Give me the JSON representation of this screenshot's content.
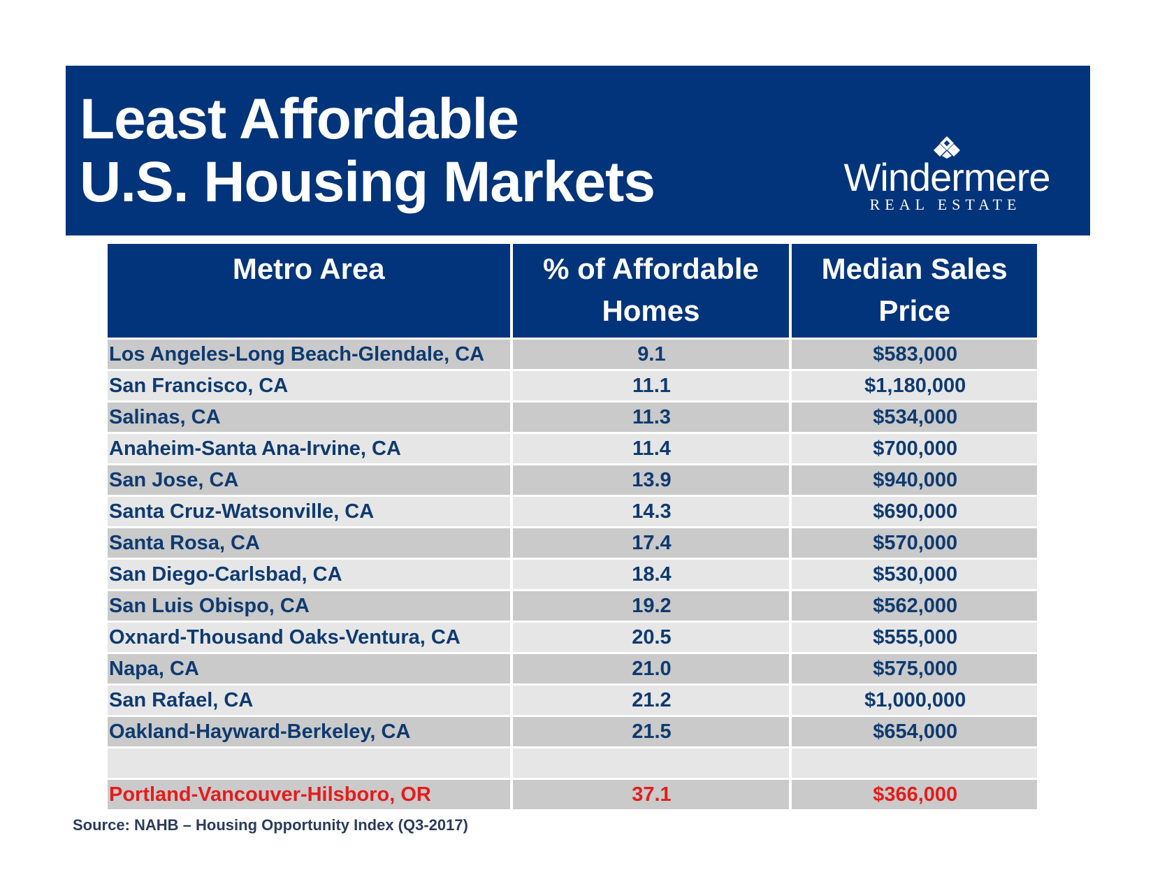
{
  "header": {
    "title_line1": "Least Affordable",
    "title_line2": "U.S. Housing Markets",
    "logo_name": "Windermere",
    "logo_sub": "REAL ESTATE"
  },
  "colors": {
    "brand_navy": "#02347b",
    "row_text": "#0e3a70",
    "highlight_red": "#e51c1c",
    "row_dark": "#cacaca",
    "row_light": "#e6e6e6"
  },
  "chart_data": {
    "type": "table",
    "columns": [
      "Metro Area",
      "% of Affordable Homes",
      "Median Sales Price"
    ],
    "rows": [
      {
        "metro": "Los Angeles-Long Beach-Glendale, CA",
        "pct": "9.1",
        "price": "$583,000"
      },
      {
        "metro": "San Francisco, CA",
        "pct": "11.1",
        "price": "$1,180,000"
      },
      {
        "metro": "Salinas, CA",
        "pct": "11.3",
        "price": "$534,000"
      },
      {
        "metro": "Anaheim-Santa Ana-Irvine, CA",
        "pct": "11.4",
        "price": "$700,000"
      },
      {
        "metro": "San Jose, CA",
        "pct": "13.9",
        "price": "$940,000"
      },
      {
        "metro": "Santa Cruz-Watsonville, CA",
        "pct": "14.3",
        "price": "$690,000"
      },
      {
        "metro": "Santa Rosa, CA",
        "pct": "17.4",
        "price": "$570,000"
      },
      {
        "metro": "San Diego-Carlsbad, CA",
        "pct": "18.4",
        "price": "$530,000"
      },
      {
        "metro": "San Luis Obispo, CA",
        "pct": "19.2",
        "price": "$562,000"
      },
      {
        "metro": "Oxnard-Thousand Oaks-Ventura, CA",
        "pct": "20.5",
        "price": "$555,000"
      },
      {
        "metro": "Napa, CA",
        "pct": "21.0",
        "price": "$575,000"
      },
      {
        "metro": "San Rafael, CA",
        "pct": "21.2",
        "price": "$1,000,000"
      },
      {
        "metro": "Oakland-Hayward-Berkeley, CA",
        "pct": "21.5",
        "price": "$654,000"
      },
      {
        "metro": "",
        "pct": "",
        "price": ""
      },
      {
        "metro": "Portland-Vancouver-Hilsboro, OR",
        "pct": "37.1",
        "price": "$366,000",
        "highlight": true
      }
    ],
    "source": "Source: NAHB – Housing Opportunity Index (Q3-2017)"
  }
}
